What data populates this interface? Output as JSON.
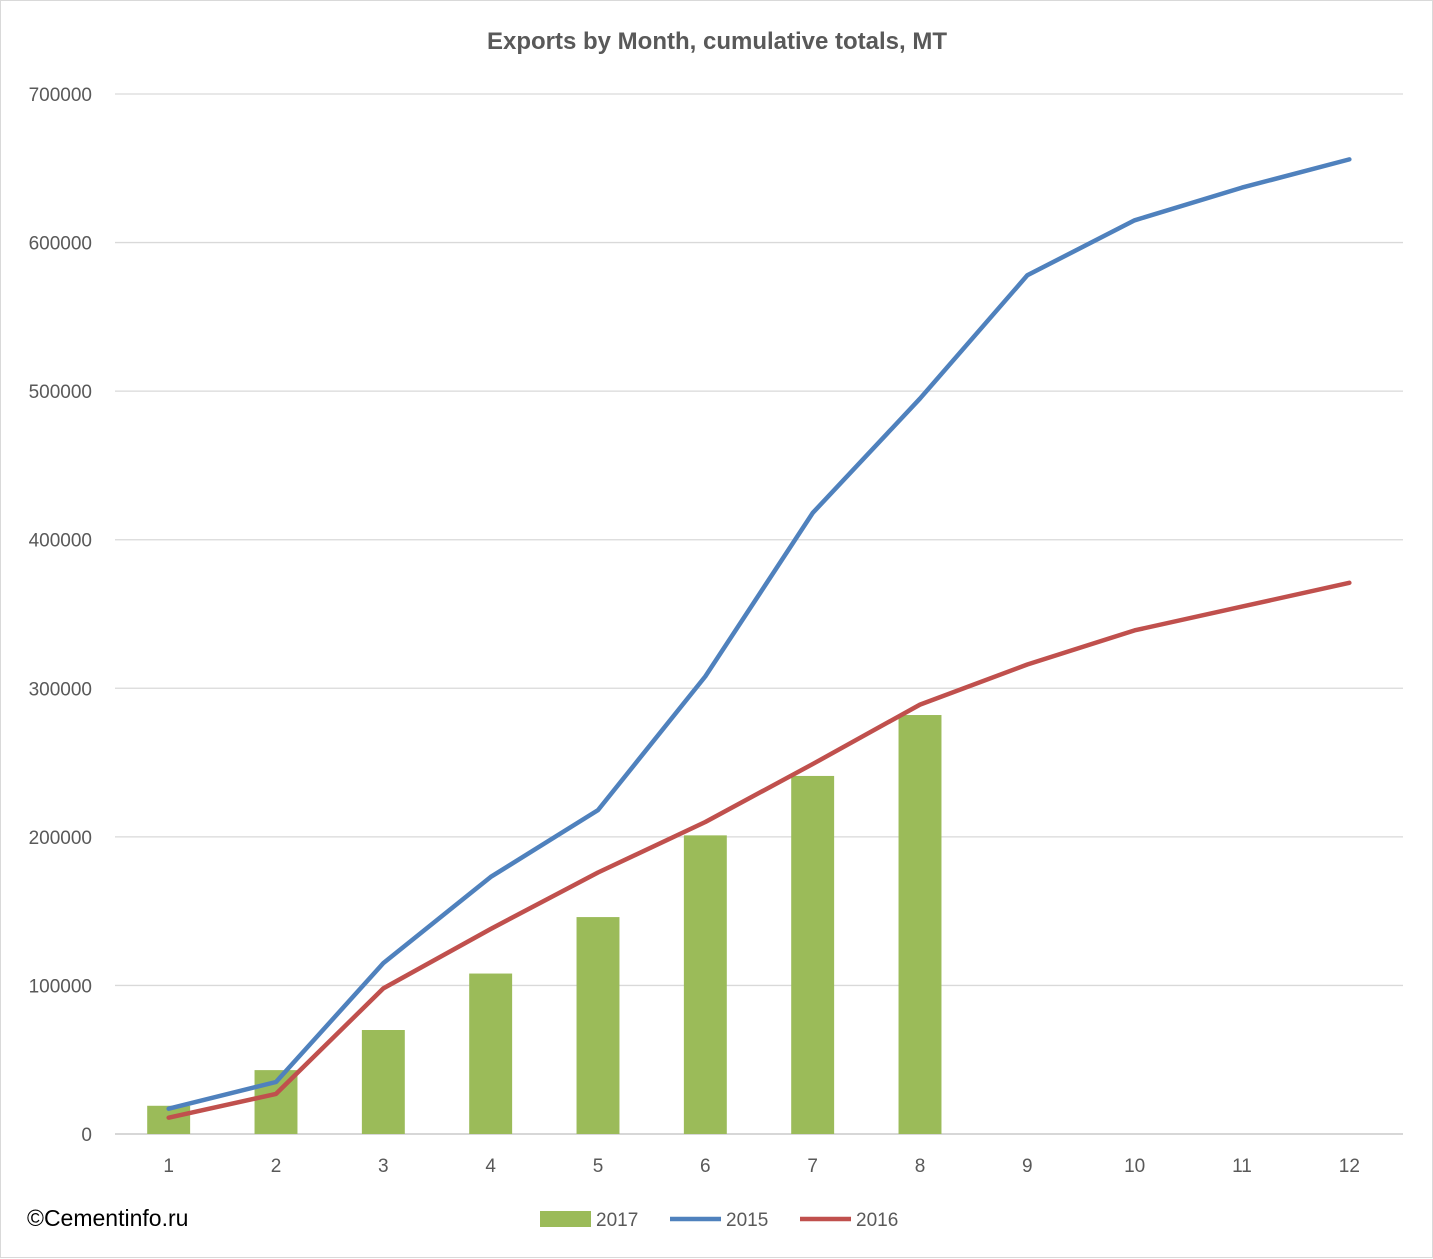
{
  "chart_data": {
    "type": "bar",
    "title": "Exports by Month, cumulative totals, MT",
    "xlabel": "",
    "ylabel": "",
    "categories": [
      "1",
      "2",
      "3",
      "4",
      "5",
      "6",
      "7",
      "8",
      "9",
      "10",
      "11",
      "12"
    ],
    "ylim": [
      0,
      700000
    ],
    "yticks": [
      "0",
      "100000",
      "200000",
      "300000",
      "400000",
      "500000",
      "600000",
      "700000"
    ],
    "grid": "horizontal",
    "legend_position": "bottom",
    "series": [
      {
        "name": "2017",
        "type": "bar",
        "color": "#9bbb59",
        "values": [
          19000,
          43000,
          70000,
          108000,
          146000,
          201000,
          241000,
          282000,
          null,
          null,
          null,
          null
        ]
      },
      {
        "name": "2015",
        "type": "line",
        "color": "#4f81bd",
        "values": [
          17000,
          35000,
          115000,
          173000,
          218000,
          308000,
          418000,
          495000,
          578000,
          615000,
          637000,
          656000
        ]
      },
      {
        "name": "2016",
        "type": "line",
        "color": "#c0504d",
        "values": [
          11000,
          27000,
          98000,
          138000,
          176000,
          210000,
          249000,
          289000,
          316000,
          339000,
          355000,
          371000
        ]
      }
    ]
  },
  "watermark": "©Cementinfo.ru"
}
